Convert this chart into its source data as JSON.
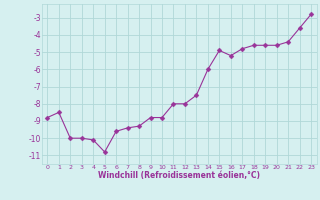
{
  "x": [
    0,
    1,
    2,
    3,
    4,
    5,
    6,
    7,
    8,
    9,
    10,
    11,
    12,
    13,
    14,
    15,
    16,
    17,
    18,
    19,
    20,
    21,
    22,
    23
  ],
  "y": [
    -8.8,
    -8.5,
    -10.0,
    -10.0,
    -10.1,
    -10.8,
    -9.6,
    -9.4,
    -9.3,
    -8.8,
    -8.8,
    -8.0,
    -8.0,
    -7.5,
    -6.0,
    -4.9,
    -5.2,
    -4.8,
    -4.6,
    -4.6,
    -4.6,
    -4.4,
    -3.6,
    -2.8
  ],
  "line_color": "#993399",
  "marker": "D",
  "marker_size": 2.5,
  "background_color": "#d6f0f0",
  "grid_color": "#b0d8d8",
  "xlabel": "Windchill (Refroidissement éolien,°C)",
  "xlabel_color": "#993399",
  "tick_color": "#993399",
  "ylim": [
    -11.5,
    -2.2
  ],
  "xlim": [
    -0.5,
    23.5
  ],
  "yticks": [
    -11,
    -10,
    -9,
    -8,
    -7,
    -6,
    -5,
    -4,
    -3
  ],
  "xticks": [
    0,
    1,
    2,
    3,
    4,
    5,
    6,
    7,
    8,
    9,
    10,
    11,
    12,
    13,
    14,
    15,
    16,
    17,
    18,
    19,
    20,
    21,
    22,
    23
  ]
}
